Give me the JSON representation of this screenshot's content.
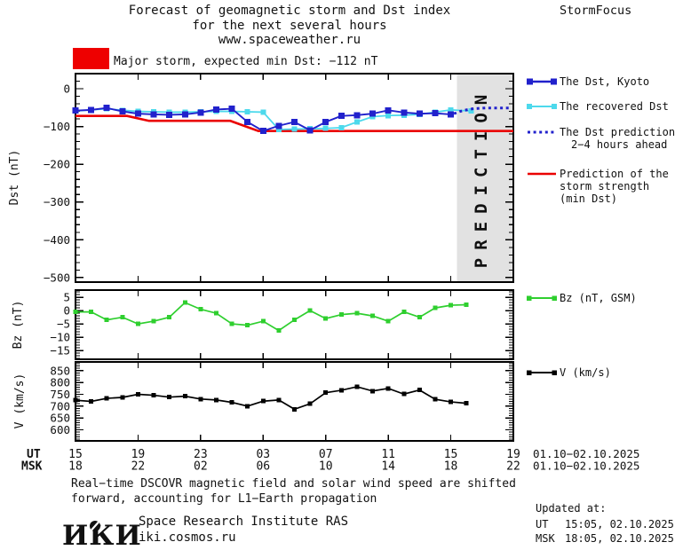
{
  "header": {
    "title_line1": "Forecast of geomagnetic storm and Dst index",
    "title_line2": "for the next several hours",
    "title_line3": "www.spaceweather.ru",
    "brand": "StormFocus",
    "alert_label": "Major storm, expected min Dst: −112 nT",
    "alert_color": "#ee0000"
  },
  "legend": {
    "dst_kyoto": {
      "label": "The Dst, Kyoto",
      "color": "#2121cc"
    },
    "recovered": {
      "label": "The recovered Dst",
      "color": "#4dd9ec"
    },
    "prediction": {
      "label_line1": "The Dst prediction",
      "label_line2": "2−4 hours ahead",
      "color": "#2121cc"
    },
    "strength": {
      "label_line1": "Prediction of the",
      "label_line2": "storm strength",
      "label_line3": "(min Dst)",
      "color": "#ea0000"
    },
    "bz": {
      "label": "Bz (nT, GSM)",
      "color": "#2fcf2f"
    },
    "v": {
      "label": "V (km/s)",
      "color": "#000000"
    }
  },
  "axes": {
    "dst_label": "Dst (nT)",
    "bz_label": "Bz (nT)",
    "v_label": "V (km/s)",
    "ut_label": "UT",
    "msk_label": "MSK",
    "date_range_ut": "01.10−02.10.2025",
    "date_range_msk": "01.10−02.10.2025"
  },
  "prediction_band": {
    "label": "PREDICTION",
    "color": "#e2e2e2",
    "text_color": "#c6c6c6",
    "window_hours": [
      24.4,
      28
    ]
  },
  "footer": {
    "note_line1": "Real−time DSCOVR magnetic field and solar wind speed are shifted",
    "note_line2": "forward, accounting for L1−Earth propagation",
    "logo": "ИКИ",
    "institute": "Space Research Institute RAS",
    "site": "iki.cosmos.ru",
    "updated_label": "Updated at:",
    "updated_ut_label": "UT",
    "updated_ut_value": "15:05, 02.10.2025",
    "updated_msk_label": "MSK",
    "updated_msk_value": "18:05, 02.10.2025"
  },
  "chart_data": [
    {
      "type": "line",
      "panel": "dst",
      "ylabel": "Dst (nT)",
      "ylim": [
        -512,
        40
      ],
      "yticks": {
        "major": [
          0,
          -100,
          -200,
          -300,
          -400,
          -500
        ],
        "minor_step": 20
      },
      "xlim_hours": [
        0,
        28
      ],
      "xtick_step_hours": 4,
      "xticks": {
        "ut": [
          "15",
          "19",
          "23",
          "03",
          "07",
          "11",
          "15",
          "19"
        ],
        "msk": [
          "18",
          "22",
          "02",
          "06",
          "10",
          "14",
          "18",
          "22"
        ]
      },
      "grid": false,
      "series": [
        {
          "name": "Prediction of the storm strength (min Dst)",
          "color": "#ea0000",
          "style": "solid",
          "width": 2.6,
          "x": [
            0,
            3.3,
            4.7,
            9.9,
            11.7,
            28
          ],
          "values": [
            -72,
            -72,
            -85,
            -85,
            -112,
            -112
          ]
        },
        {
          "name": "The recovered Dst",
          "color": "#4dd9ec",
          "style": "solid",
          "width": 1.8,
          "marker": "square",
          "marker_size": 6,
          "x": [
            0,
            1,
            2,
            3,
            4,
            5,
            6,
            7,
            8,
            9,
            10,
            11,
            12,
            13,
            14,
            15,
            16,
            17,
            18,
            19,
            20,
            21,
            22,
            23,
            24,
            25.3
          ],
          "values": [
            -59,
            -56,
            -53,
            -57,
            -60,
            -61,
            -62,
            -62,
            -61,
            -60,
            -60,
            -61,
            -62,
            -108,
            -107,
            -106,
            -105,
            -103,
            -88,
            -74,
            -71,
            -70,
            -68,
            -62,
            -56,
            -59
          ]
        },
        {
          "name": "The Dst, Kyoto",
          "color": "#2121cc",
          "style": "solid",
          "width": 1.9,
          "marker": "square",
          "marker_size": 7,
          "x": [
            0,
            1,
            2,
            3,
            4,
            5,
            6,
            7,
            8,
            9,
            10,
            11,
            12,
            13,
            14,
            15,
            16,
            17,
            18,
            19,
            20,
            21,
            22,
            23,
            24
          ],
          "values": [
            -58,
            -56,
            -51,
            -60,
            -66,
            -68,
            -69,
            -68,
            -63,
            -55,
            -53,
            -88,
            -112,
            -98,
            -88,
            -110,
            -88,
            -72,
            -70,
            -66,
            -57,
            -63,
            -66,
            -65,
            -68
          ]
        },
        {
          "name": "The Dst prediction 2−4 hours ahead",
          "color": "#2121cc",
          "style": "dotted",
          "width": 3,
          "x": [
            24.2,
            24.6,
            25,
            25.4,
            25.8,
            26.2,
            26.6,
            27,
            27.4,
            27.7
          ],
          "values": [
            -66,
            -60,
            -56,
            -53,
            -52,
            -51,
            -51,
            -51,
            -51,
            -51
          ]
        }
      ]
    },
    {
      "type": "line",
      "panel": "bz",
      "ylabel": "Bz (nT)",
      "ylim": [
        -18.3,
        7.7
      ],
      "yticks": {
        "major": [
          5,
          0,
          -5,
          -10,
          -15
        ],
        "minor_step": 1
      },
      "series": [
        {
          "name": "Bz (nT, GSM)",
          "color": "#2fcf2f",
          "style": "solid",
          "width": 1.7,
          "marker": "square",
          "marker_size": 5,
          "x": [
            0,
            1,
            2,
            3,
            4,
            5,
            6,
            7,
            8,
            9,
            10,
            11,
            12,
            13,
            14,
            15,
            16,
            17,
            18,
            19,
            20,
            21,
            22,
            23,
            24,
            25
          ],
          "values": [
            -0.5,
            -0.5,
            -3.5,
            -2.5,
            -5,
            -4,
            -2.5,
            3,
            0.5,
            -1,
            -5,
            -5.5,
            -4,
            -7.5,
            -3.5,
            0,
            -3,
            -1.5,
            -1,
            -2,
            -4,
            -0.5,
            -2.5,
            1,
            2,
            2.2
          ]
        }
      ]
    },
    {
      "type": "line",
      "panel": "v",
      "ylabel": "V (km/s)",
      "ylim": [
        553,
        887
      ],
      "yticks": {
        "major": [
          850,
          800,
          750,
          700,
          650,
          600
        ],
        "minor_step": 10
      },
      "series": [
        {
          "name": "V (km/s)",
          "color": "#000000",
          "style": "solid",
          "width": 1.7,
          "marker": "square",
          "marker_size": 5,
          "x": [
            0,
            1,
            2,
            3,
            4,
            5,
            6,
            7,
            8,
            9,
            10,
            11,
            12,
            13,
            14,
            15,
            16,
            17,
            18,
            19,
            20,
            21,
            22,
            23,
            24,
            25
          ],
          "values": [
            725,
            720,
            733,
            737,
            750,
            746,
            738,
            742,
            730,
            726,
            716,
            700,
            721,
            726,
            687,
            710,
            757,
            767,
            782,
            764,
            775,
            751,
            768,
            729,
            718,
            712
          ]
        }
      ]
    }
  ]
}
